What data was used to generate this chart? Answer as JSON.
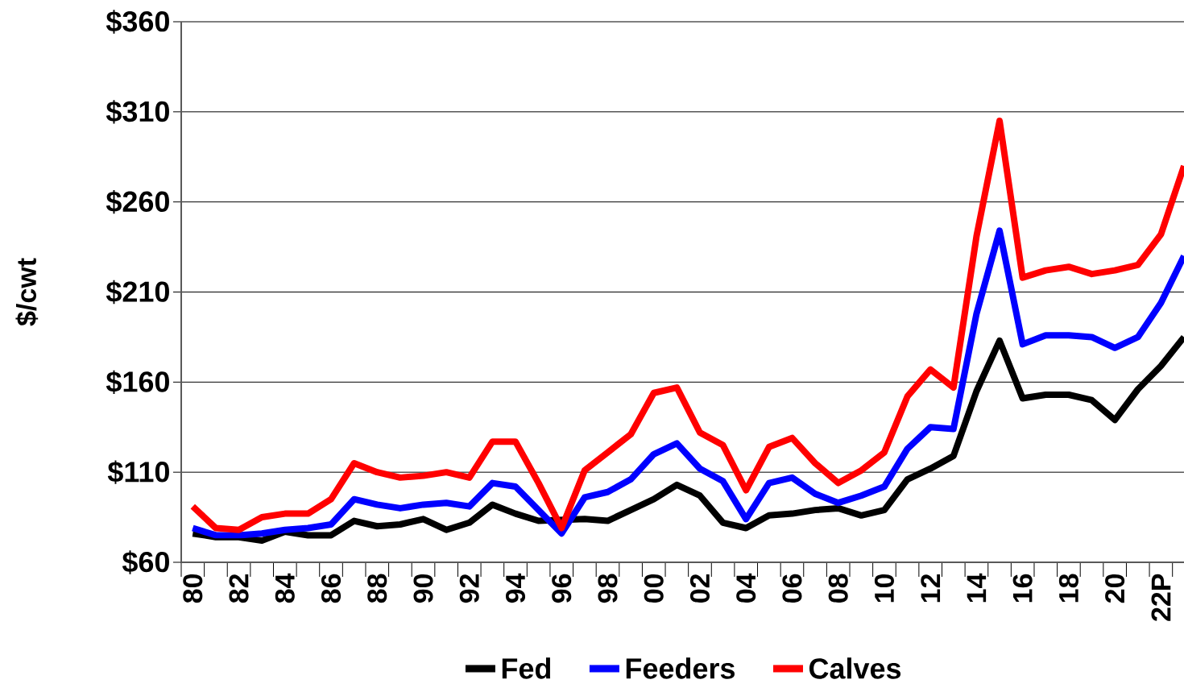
{
  "chart_data": {
    "type": "line",
    "ylabel": "$/cwt",
    "categories": [
      "80",
      null,
      "82",
      null,
      "84",
      null,
      "86",
      null,
      "88",
      null,
      "90",
      null,
      "92",
      null,
      "94",
      null,
      "96",
      null,
      "98",
      null,
      "00",
      null,
      "02",
      null,
      "04",
      null,
      "06",
      null,
      "08",
      null,
      "10",
      null,
      "12",
      null,
      "14",
      null,
      "16",
      null,
      "18",
      null,
      "20",
      null,
      "22P",
      null
    ],
    "series": [
      {
        "name": "Fed",
        "color": "#000000",
        "values": [
          76,
          74,
          74,
          72,
          77,
          75,
          75,
          83,
          80,
          81,
          84,
          78,
          82,
          92,
          87,
          83,
          null,
          84,
          83,
          89,
          95,
          103,
          97,
          82,
          79,
          86,
          87,
          89,
          90,
          86,
          89,
          106,
          112,
          119,
          155,
          183,
          151,
          153,
          153,
          150,
          139,
          156,
          169,
          185
        ]
      },
      {
        "name": "Feeders",
        "color": "#0000ff",
        "values": [
          79,
          75,
          75,
          76,
          78,
          79,
          81,
          95,
          92,
          90,
          92,
          93,
          91,
          104,
          102,
          89,
          76,
          96,
          99,
          106,
          120,
          126,
          112,
          105,
          84,
          104,
          107,
          98,
          93,
          97,
          102,
          123,
          135,
          134,
          198,
          244,
          181,
          186,
          186,
          185,
          179,
          185,
          204,
          230
        ]
      },
      {
        "name": "Calves",
        "color": "#ff0000",
        "values": [
          91,
          79,
          78,
          85,
          87,
          87,
          95,
          115,
          110,
          107,
          108,
          110,
          107,
          127,
          127,
          104,
          79,
          111,
          121,
          131,
          154,
          157,
          132,
          125,
          100,
          124,
          129,
          115,
          104,
          111,
          121,
          152,
          167,
          157,
          241,
          305,
          218,
          222,
          224,
          220,
          222,
          225,
          242,
          280
        ]
      }
    ],
    "ylim": [
      60,
      360
    ],
    "yticks": [
      {
        "value": 60,
        "label": "$60"
      },
      {
        "value": 110,
        "label": "$110"
      },
      {
        "value": 160,
        "label": "$160"
      },
      {
        "value": 210,
        "label": "$210"
      },
      {
        "value": 260,
        "label": "$260"
      },
      {
        "value": 310,
        "label": "$310"
      },
      {
        "value": 360,
        "label": "$360"
      }
    ],
    "grid": "y",
    "legend": "bottom",
    "marker": "none",
    "line_style": "solid"
  }
}
